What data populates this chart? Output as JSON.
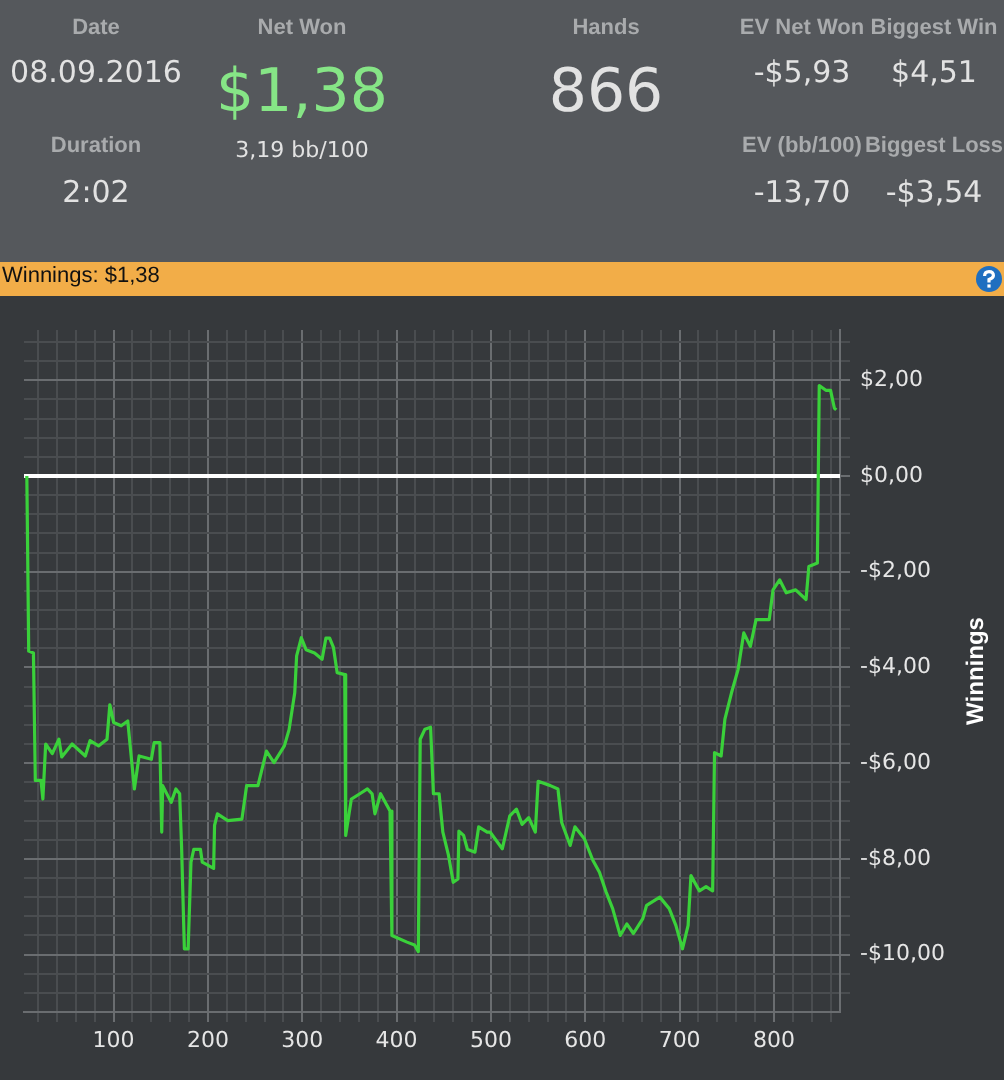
{
  "chart_data": [
    {
      "type": "other",
      "annotations": [
        "Date",
        "08.09.2016",
        "Duration",
        "2:02",
        "Net Won",
        "$1,38",
        "3,19 bb/100",
        "Hands",
        "866",
        "EV Net Won",
        "-$5,93",
        "Biggest Win",
        "$4,51",
        "EV (bb/100)",
        "-13,70",
        "Biggest Loss",
        "-$3,54"
      ]
    },
    {
      "type": "line",
      "title": "Winnings: $1,38",
      "ylabel": "Winnings",
      "legend": false,
      "grid": true,
      "marker": "none",
      "line_style": "solid",
      "xlim": [
        5,
        870
      ],
      "ylim": [
        -11.2,
        3.05
      ],
      "xticks": [
        {
          "value": 20,
          "label": null
        },
        {
          "value": 40,
          "label": null
        },
        {
          "value": 60,
          "label": null
        },
        {
          "value": 80,
          "label": null
        },
        100,
        {
          "value": 120,
          "label": null
        },
        {
          "value": 140,
          "label": null
        },
        {
          "value": 160,
          "label": null
        },
        {
          "value": 180,
          "label": null
        },
        200,
        {
          "value": 220,
          "label": null
        },
        {
          "value": 240,
          "label": null
        },
        {
          "value": 260,
          "label": null
        },
        {
          "value": 280,
          "label": null
        },
        300,
        {
          "value": 320,
          "label": null
        },
        {
          "value": 340,
          "label": null
        },
        {
          "value": 360,
          "label": null
        },
        {
          "value": 380,
          "label": null
        },
        400,
        {
          "value": 420,
          "label": null
        },
        {
          "value": 440,
          "label": null
        },
        {
          "value": 460,
          "label": null
        },
        {
          "value": 480,
          "label": null
        },
        500,
        {
          "value": 520,
          "label": null
        },
        {
          "value": 540,
          "label": null
        },
        {
          "value": 560,
          "label": null
        },
        {
          "value": 580,
          "label": null
        },
        600,
        {
          "value": 620,
          "label": null
        },
        {
          "value": 640,
          "label": null
        },
        {
          "value": 660,
          "label": null
        },
        {
          "value": 680,
          "label": null
        },
        700,
        {
          "value": 720,
          "label": null
        },
        {
          "value": 740,
          "label": null
        },
        {
          "value": 760,
          "label": null
        },
        {
          "value": 780,
          "label": null
        },
        800,
        {
          "value": 820,
          "label": null
        },
        {
          "value": 840,
          "label": null
        },
        {
          "value": 860,
          "label": null
        }
      ],
      "yticks": [
        {
          "value": -10.8,
          "label": null
        },
        {
          "value": -10.4,
          "label": null
        },
        {
          "value": -10,
          "label": "-$10,00"
        },
        {
          "value": -9.6,
          "label": null
        },
        {
          "value": -9.2,
          "label": null
        },
        {
          "value": -8.8,
          "label": null
        },
        {
          "value": -8.4,
          "label": null
        },
        {
          "value": -8,
          "label": "-$8,00"
        },
        {
          "value": -7.6,
          "label": null
        },
        {
          "value": -7.2,
          "label": null
        },
        {
          "value": -6.8,
          "label": null
        },
        {
          "value": -6.4,
          "label": null
        },
        {
          "value": -6,
          "label": "-$6,00"
        },
        {
          "value": -5.6,
          "label": null
        },
        {
          "value": -5.2,
          "label": null
        },
        {
          "value": -4.8,
          "label": null
        },
        {
          "value": -4.4,
          "label": null
        },
        {
          "value": -4,
          "label": "-$4,00"
        },
        {
          "value": -3.6,
          "label": null
        },
        {
          "value": -3.2,
          "label": null
        },
        {
          "value": -2.8,
          "label": null
        },
        {
          "value": -2.4,
          "label": null
        },
        {
          "value": -2,
          "label": "-$2,00"
        },
        {
          "value": -1.6,
          "label": null
        },
        {
          "value": -1.2,
          "label": null
        },
        {
          "value": -0.8,
          "label": null
        },
        {
          "value": -0.4,
          "label": null
        },
        {
          "value": 0,
          "label": "$0,00"
        },
        {
          "value": 0.4,
          "label": null
        },
        {
          "value": 0.8,
          "label": null
        },
        {
          "value": 1.2,
          "label": null
        },
        {
          "value": 1.6,
          "label": null
        },
        {
          "value": 2,
          "label": "$2,00"
        },
        {
          "value": 2.4,
          "label": null
        },
        {
          "value": 2.8,
          "label": null
        }
      ],
      "ref_lines": [
        {
          "axis": "y",
          "value": 0,
          "color": "#ffffff"
        }
      ],
      "x": [
        8,
        10,
        15,
        17,
        23,
        25,
        28,
        35,
        42,
        45,
        56,
        70,
        75,
        84,
        93,
        96,
        100,
        108,
        115,
        122,
        127,
        140,
        143,
        149,
        151,
        152,
        161,
        166,
        170,
        172,
        175,
        179,
        182,
        185,
        192,
        194,
        206,
        207,
        210,
        221,
        236,
        241,
        253,
        262,
        270,
        281,
        286,
        292,
        294,
        299,
        304,
        313,
        321,
        325,
        329,
        333,
        337,
        345,
        346,
        352,
        361,
        369,
        374,
        377,
        383,
        393,
        395,
        411,
        419,
        423,
        425,
        430,
        436,
        439,
        445,
        449,
        455,
        460,
        465,
        466,
        471,
        475,
        483,
        487,
        496,
        499,
        512,
        520,
        527,
        533,
        540,
        547,
        550,
        563,
        571,
        575,
        584,
        589,
        599,
        608,
        615,
        622,
        629,
        637,
        644,
        651,
        661,
        665,
        679,
        689,
        696,
        703,
        709,
        712,
        721,
        728,
        735,
        737,
        744,
        748,
        755,
        762,
        768,
        775,
        781,
        795,
        799,
        806,
        813,
        823,
        834,
        837,
        846,
        848,
        855,
        860,
        864,
        866
      ],
      "series": [
        {
          "color": "#3ad13a",
          "values": [
            0,
            -3.66,
            -3.7,
            -6.36,
            -6.36,
            -6.75,
            -5.6,
            -5.8,
            -5.5,
            -5.87,
            -5.6,
            -5.85,
            -5.53,
            -5.64,
            -5.5,
            -4.78,
            -5.15,
            -5.22,
            -5.12,
            -6.54,
            -5.85,
            -5.92,
            -5.57,
            -5.57,
            -7.44,
            -6.47,
            -6.82,
            -6.54,
            -6.64,
            -7.72,
            -9.88,
            -9.88,
            -8.07,
            -7.8,
            -7.8,
            -8.07,
            -8.2,
            -7.3,
            -7.06,
            -7.2,
            -7.17,
            -6.47,
            -6.47,
            -5.75,
            -5.99,
            -5.64,
            -5.3,
            -4.53,
            -3.76,
            -3.38,
            -3.63,
            -3.7,
            -3.83,
            -3.39,
            -3.39,
            -3.58,
            -4.11,
            -4.15,
            -7.51,
            -6.75,
            -6.64,
            -6.54,
            -6.64,
            -7.06,
            -6.64,
            -7.0,
            -9.6,
            -9.74,
            -9.8,
            -9.94,
            -5.5,
            -5.29,
            -5.25,
            -6.64,
            -6.64,
            -7.44,
            -7.93,
            -8.49,
            -8.42,
            -7.42,
            -7.51,
            -7.8,
            -7.86,
            -7.33,
            -7.44,
            -7.44,
            -7.79,
            -7.1,
            -6.96,
            -7.28,
            -7.14,
            -7.44,
            -6.38,
            -6.47,
            -6.54,
            -7.24,
            -7.72,
            -7.33,
            -7.58,
            -8.03,
            -8.28,
            -8.69,
            -9.04,
            -9.6,
            -9.36,
            -9.56,
            -9.25,
            -8.97,
            -8.8,
            -9.04,
            -9.39,
            -9.88,
            -9.39,
            -8.35,
            -8.67,
            -8.58,
            -8.67,
            -5.78,
            -5.85,
            -5.08,
            -4.53,
            -4.04,
            -3.28,
            -3.56,
            -3.0,
            -3.0,
            -2.38,
            -2.17,
            -2.44,
            -2.38,
            -2.58,
            -1.89,
            -1.82,
            1.89,
            1.79,
            1.79,
            1.42,
            1.38
          ]
        }
      ]
    }
  ]
}
